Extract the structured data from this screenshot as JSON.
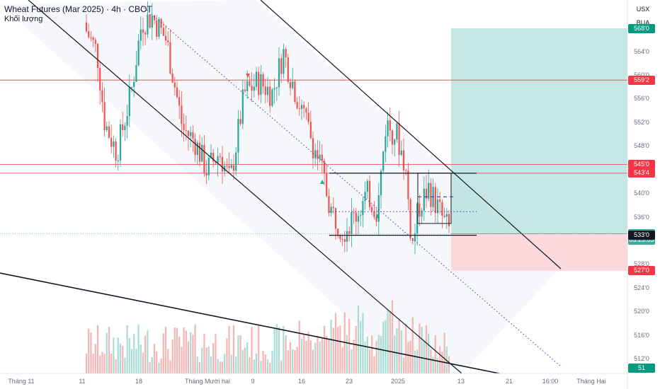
{
  "header": {
    "title": "Wheat Futures (Mar 2025) · 4h · CBOT",
    "volume_label": "Khối lượng"
  },
  "price_scale": {
    "unit": "USX",
    "mode": "BUA",
    "ticks": [
      "564'0",
      "560'0",
      "556'0",
      "552'0",
      "548'0",
      "540'0",
      "536'0",
      "528'0",
      "524'0",
      "520'0",
      "516'0",
      "512'0"
    ],
    "badges": [
      {
        "text": "568'0",
        "color": "#089981",
        "price": 568
      },
      {
        "text": "559'2",
        "color": "#f23645",
        "price": 559.25
      },
      {
        "text": "545'0",
        "color": "#f23645",
        "price": 545
      },
      {
        "text": "543'4",
        "color": "#f23645",
        "price": 543.5
      },
      {
        "text": "533'2",
        "color": "#43a99a",
        "price": 533.25
      },
      {
        "text": "03:23:53",
        "color": "#43a99a",
        "price": 532.2
      },
      {
        "text": "533'0",
        "color": "#131722",
        "price": 533
      },
      {
        "text": "527'0",
        "color": "#f23645",
        "price": 527
      },
      {
        "text": "51",
        "color": "#089981",
        "price": 510.5
      }
    ]
  },
  "time_axis": {
    "labels": [
      "Tháng 11",
      "11",
      "18",
      "Tháng Mười hai",
      "9",
      "16",
      "23",
      "2025",
      "13",
      "21",
      "16:00",
      "Tháng Hai"
    ]
  },
  "chart_data": {
    "type": "candlestick",
    "symbol": "Wheat Futures (Mar 2025)",
    "interval": "4h",
    "exchange": "CBOT",
    "price_range": [
      511,
      570
    ],
    "last_price": 533.25,
    "countdown": "03:23:53",
    "horizontal_levels": [
      559.25,
      545,
      543.5,
      533
    ],
    "long_position": {
      "entry": 533.25,
      "target": 568,
      "stop": 527
    },
    "rectangle_range": {
      "top": 543.5,
      "bottom": 533
    },
    "colors": {
      "up": "#26a69a",
      "down": "#ef5350",
      "level": "#f23645",
      "target_zone": "#b2dfdb",
      "stop_zone": "#fcd9dc"
    }
  }
}
